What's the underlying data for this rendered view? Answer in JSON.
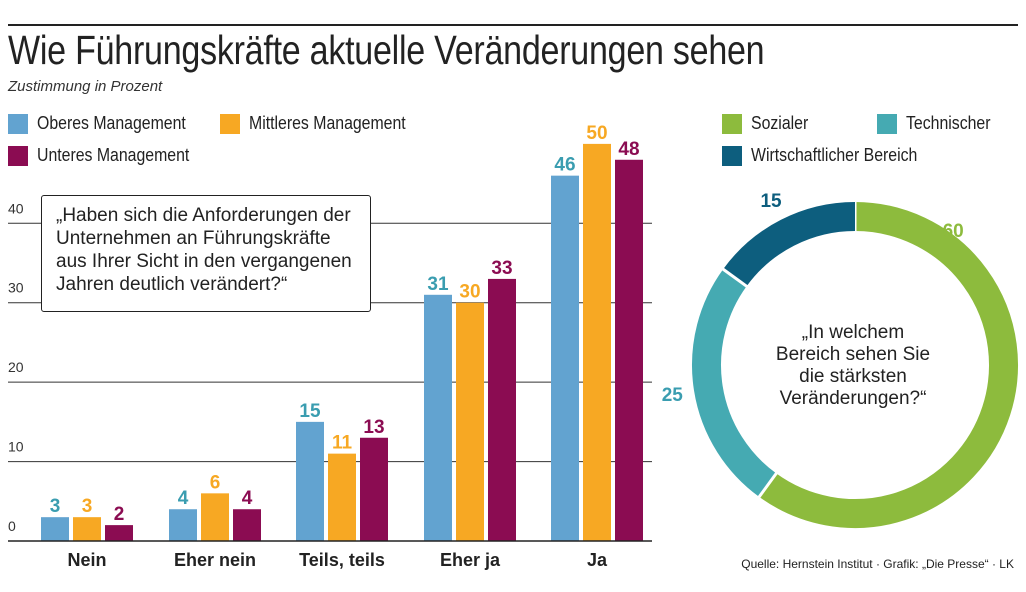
{
  "title": "Wie Führungskräfte aktuelle Veränderungen sehen",
  "subtitle": "Zustimmung in Prozent",
  "source": "Quelle: Hernstein Institut · Grafik: „Die Presse“ · LK",
  "chart_data": [
    {
      "type": "bar",
      "question": "„Haben sich die Anforderungen der\nUnternehmen an Führungskräfte\naus Ihrer Sicht in den vergangenen\nJahren deutlich verändert?“",
      "categories": [
        "Nein",
        "Eher nein",
        "Teils, teils",
        "Eher ja",
        "Ja"
      ],
      "series": [
        {
          "name": "Oberes Management",
          "color": "#62a3d0",
          "label_color": "#3a9db0",
          "values": [
            3,
            4,
            15,
            31,
            46
          ]
        },
        {
          "name": "Mittleres Management",
          "color": "#f7a823",
          "label_color": "#f7a823",
          "values": [
            3,
            6,
            11,
            30,
            50
          ]
        },
        {
          "name": "Unteres Management",
          "color": "#8b0c52",
          "label_color": "#8b0c52",
          "values": [
            2,
            4,
            13,
            33,
            48
          ]
        }
      ],
      "y_ticks": [
        0,
        10,
        20,
        30,
        40
      ],
      "ylim": [
        0,
        52
      ],
      "grid": true,
      "legend": "top-left"
    },
    {
      "type": "pie",
      "style": "donut",
      "question": "„In welchem\nBereich sehen Sie\ndie stärksten\nVeränderungen?“",
      "slices": [
        {
          "name": "Sozialer",
          "value": 60,
          "color": "#8dbb3d"
        },
        {
          "name": "Technischer",
          "value": 25,
          "color": "#45aab2"
        },
        {
          "name": "Wirtschaftlicher Bereich",
          "value": 15,
          "color": "#0d5e7e"
        }
      ],
      "legend": "top"
    }
  ]
}
